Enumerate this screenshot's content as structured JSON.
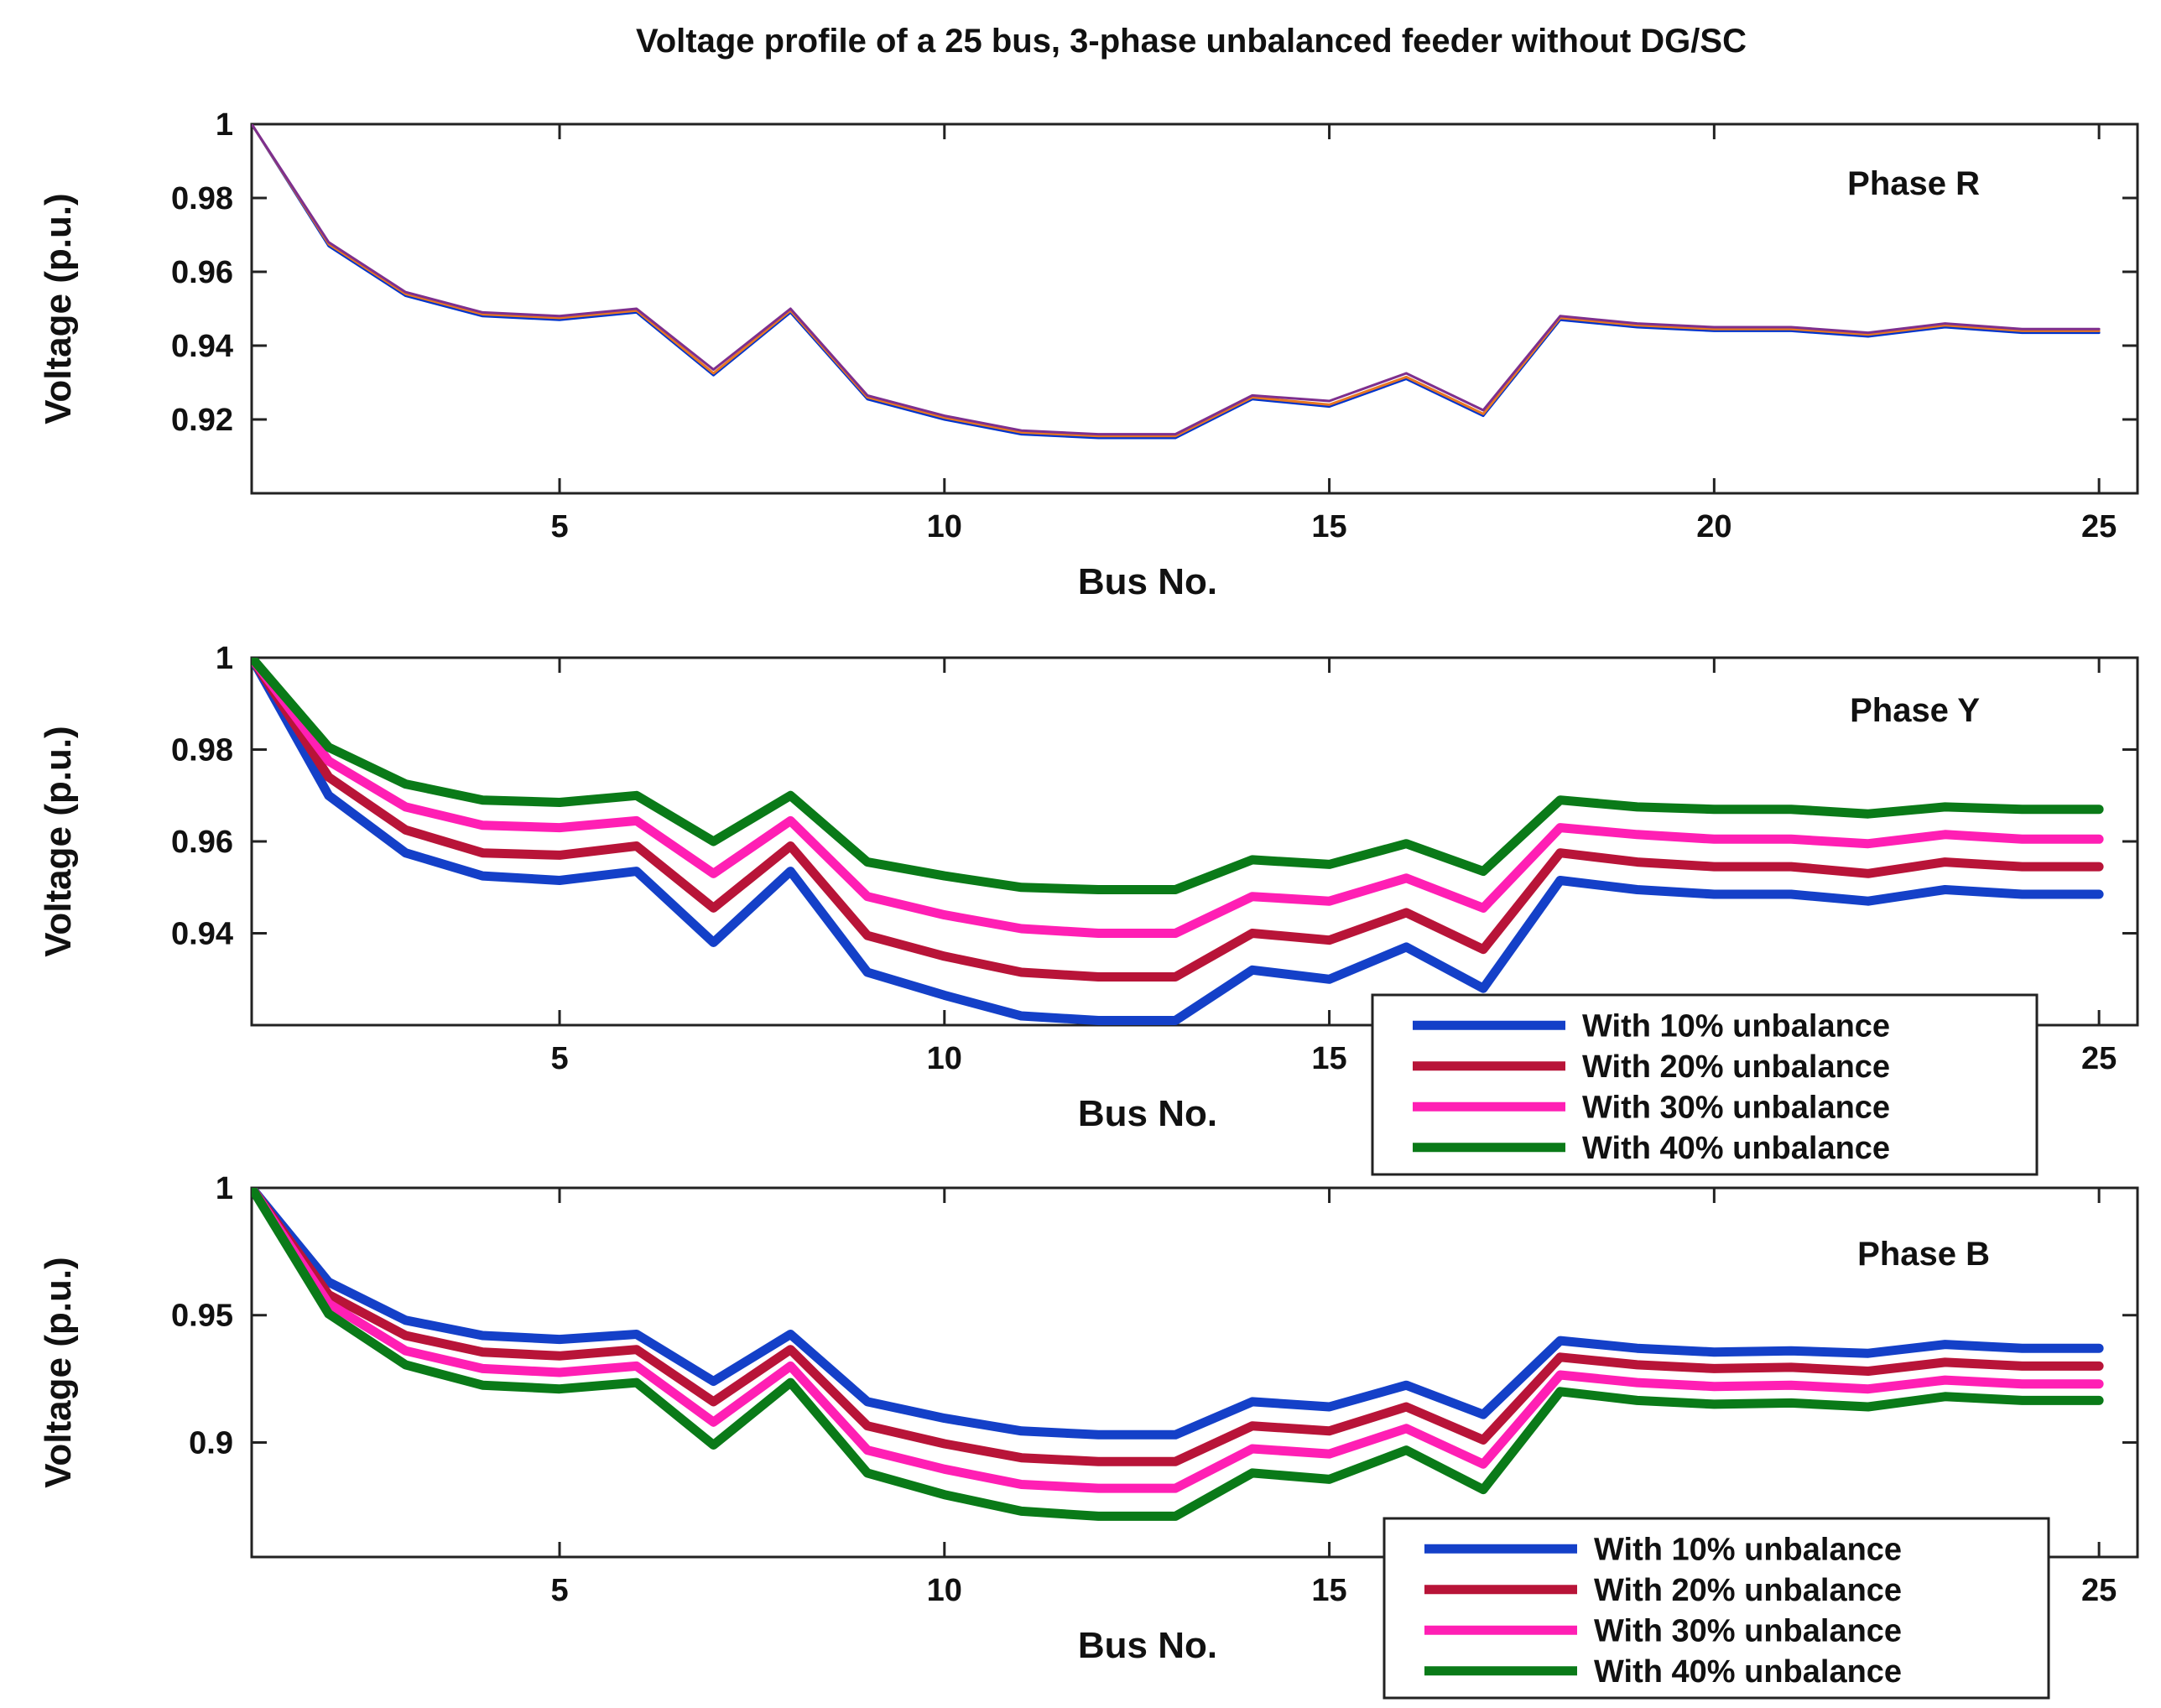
{
  "chart_data": {
    "type": "line",
    "title": "Voltage profile of a 25 bus, 3-phase unbalanced feeder without DG/SC",
    "xlabel": "Bus No.",
    "ylabel": "Voltage (p.u.)",
    "subplots": [
      {
        "name": "Phase R",
        "xlim": [
          1,
          25.5
        ],
        "ylim": [
          0.9,
          1.0
        ],
        "xticks": [
          5,
          10,
          15,
          20,
          25
        ],
        "yticks": [
          0.92,
          0.94,
          0.96,
          0.98,
          1
        ],
        "ytick_labels": [
          "0.92",
          "0.94",
          "0.96",
          "0.98",
          "1"
        ],
        "legend": false,
        "series": [
          {
            "name": "With 10% unbalance",
            "color": "#0033cc",
            "width": 3,
            "values": [
              1.0,
              0.967,
              0.9535,
              0.948,
              0.947,
              0.949,
              0.932,
              0.949,
              0.9255,
              0.92,
              0.916,
              0.915,
              0.915,
              0.9255,
              0.9235,
              0.931,
              0.921,
              0.947,
              0.945,
              0.944,
              0.944,
              0.9425,
              0.945,
              0.9435,
              0.9435
            ]
          },
          {
            "name": "With 20% unbalance",
            "color": "#e87722",
            "width": 3,
            "values": [
              1.0,
              0.9675,
              0.954,
              0.9485,
              0.9475,
              0.9495,
              0.9325,
              0.9495,
              0.926,
              0.9205,
              0.9165,
              0.9155,
              0.9155,
              0.926,
              0.924,
              0.9315,
              0.9215,
              0.9475,
              0.9455,
              0.9445,
              0.9445,
              0.943,
              0.9455,
              0.944,
              0.944
            ]
          },
          {
            "name": "With 30% unbalance",
            "color": "#7e2f8e",
            "width": 3,
            "values": [
              1.0,
              0.968,
              0.9545,
              0.949,
              0.948,
              0.95,
              0.9335,
              0.95,
              0.9265,
              0.921,
              0.917,
              0.916,
              0.916,
              0.9265,
              0.925,
              0.9325,
              0.9225,
              0.948,
              0.946,
              0.945,
              0.945,
              0.9435,
              0.946,
              0.9445,
              0.9445
            ]
          }
        ]
      },
      {
        "name": "Phase Y",
        "xlim": [
          1,
          25.5
        ],
        "ylim": [
          0.92,
          1.0
        ],
        "xticks": [
          5,
          10,
          15,
          20,
          25
        ],
        "yticks": [
          0.94,
          0.96,
          0.98,
          1
        ],
        "ytick_labels": [
          "0.94",
          "0.96",
          "0.98",
          "1"
        ],
        "legend": true,
        "series": [
          {
            "name": "With 10% unbalance",
            "color": "#1440c8",
            "width": 11,
            "values": [
              1.0,
              0.97,
              0.9575,
              0.9525,
              0.9515,
              0.9535,
              0.938,
              0.9535,
              0.9315,
              0.9265,
              0.922,
              0.921,
              0.921,
              0.932,
              0.93,
              0.937,
              0.928,
              0.9515,
              0.9495,
              0.9485,
              0.9485,
              0.947,
              0.9495,
              0.9485,
              0.9485
            ]
          },
          {
            "name": "With 20% unbalance",
            "color": "#b81438",
            "width": 11,
            "values": [
              1.0,
              0.974,
              0.9625,
              0.9575,
              0.957,
              0.959,
              0.9455,
              0.959,
              0.9395,
              0.935,
              0.9315,
              0.9305,
              0.9305,
              0.94,
              0.9385,
              0.9445,
              0.9365,
              0.9575,
              0.9555,
              0.9545,
              0.9545,
              0.953,
              0.9555,
              0.9545,
              0.9545
            ]
          },
          {
            "name": "With 30% unbalance",
            "color": "#ff1fb4",
            "width": 11,
            "values": [
              1.0,
              0.9775,
              0.9675,
              0.9635,
              0.963,
              0.9645,
              0.953,
              0.9645,
              0.948,
              0.944,
              0.941,
              0.94,
              0.94,
              0.948,
              0.947,
              0.952,
              0.9455,
              0.963,
              0.9615,
              0.9605,
              0.9605,
              0.9595,
              0.9615,
              0.9605,
              0.9605
            ]
          },
          {
            "name": "With 40% unbalance",
            "color": "#0a7a18",
            "width": 11,
            "values": [
              1.0,
              0.9805,
              0.9725,
              0.969,
              0.9685,
              0.97,
              0.96,
              0.97,
              0.9555,
              0.9525,
              0.95,
              0.9495,
              0.9495,
              0.956,
              0.955,
              0.9595,
              0.9535,
              0.969,
              0.9675,
              0.967,
              0.967,
              0.966,
              0.9675,
              0.967,
              0.967
            ]
          }
        ]
      },
      {
        "name": "Phase B",
        "xlim": [
          1,
          25.5
        ],
        "ylim": [
          0.855,
          1.0
        ],
        "xticks": [
          5,
          10,
          15,
          20,
          25
        ],
        "yticks": [
          0.9,
          0.95,
          1
        ],
        "ytick_labels": [
          "0.9",
          "0.95",
          "1"
        ],
        "legend": true,
        "series": [
          {
            "name": "With 10% unbalance",
            "color": "#1440c8",
            "width": 11,
            "values": [
              1.0,
              0.963,
              0.948,
              0.942,
              0.9405,
              0.9425,
              0.924,
              0.9425,
              0.916,
              0.9095,
              0.9045,
              0.903,
              0.903,
              0.916,
              0.914,
              0.9225,
              0.911,
              0.94,
              0.937,
              0.9355,
              0.936,
              0.935,
              0.9385,
              0.937,
              0.937
            ]
          },
          {
            "name": "With 20% unbalance",
            "color": "#b81438",
            "width": 11,
            "values": [
              1.0,
              0.958,
              0.942,
              0.9355,
              0.934,
              0.9365,
              0.916,
              0.9365,
              0.9065,
              0.8995,
              0.894,
              0.8925,
              0.8925,
              0.9065,
              0.9045,
              0.914,
              0.901,
              0.9335,
              0.9305,
              0.929,
              0.9295,
              0.928,
              0.9315,
              0.93,
              0.93
            ]
          },
          {
            "name": "With 30% unbalance",
            "color": "#ff1fb4",
            "width": 11,
            "values": [
              1.0,
              0.9545,
              0.936,
              0.929,
              0.9275,
              0.93,
              0.908,
              0.93,
              0.897,
              0.8895,
              0.8835,
              0.882,
              0.882,
              0.8975,
              0.8955,
              0.9055,
              0.8915,
              0.9265,
              0.9235,
              0.922,
              0.9225,
              0.921,
              0.9245,
              0.923,
              0.923
            ]
          },
          {
            "name": "With 40% unbalance",
            "color": "#0a7a18",
            "width": 11,
            "values": [
              1.0,
              0.9505,
              0.9305,
              0.9225,
              0.921,
              0.9235,
              0.899,
              0.9235,
              0.888,
              0.8795,
              0.873,
              0.871,
              0.871,
              0.888,
              0.8855,
              0.897,
              0.8815,
              0.92,
              0.9165,
              0.915,
              0.9155,
              0.914,
              0.918,
              0.9165,
              0.9165
            ]
          }
        ]
      }
    ]
  }
}
